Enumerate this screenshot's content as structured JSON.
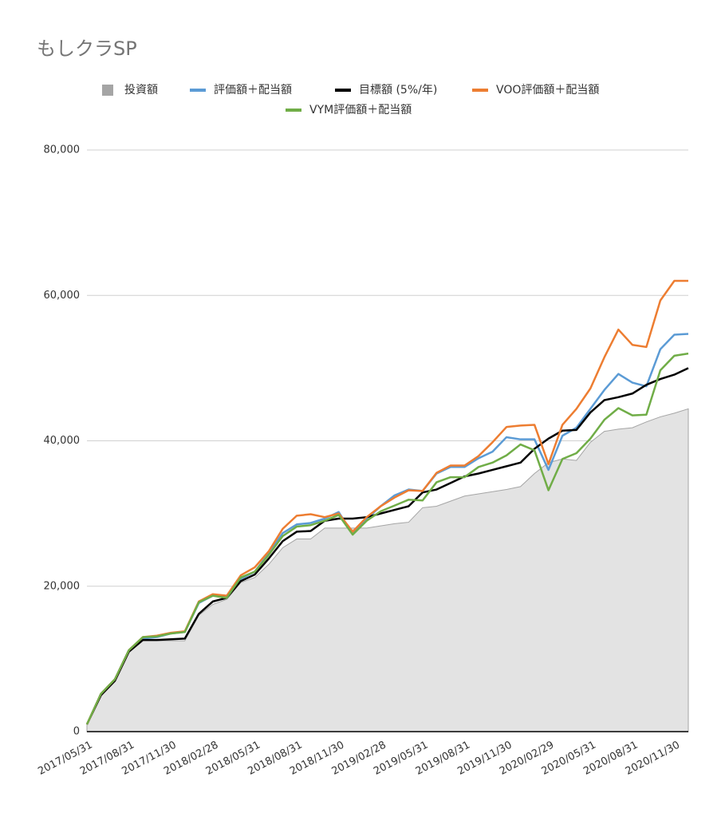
{
  "chart_data": {
    "type": "line",
    "title": "もしクラSP",
    "categories": [
      "2017/05/31",
      null,
      null,
      "2017/08/31",
      null,
      null,
      "2017/11/30",
      null,
      null,
      "2018/02/28",
      null,
      null,
      "2018/05/31",
      null,
      null,
      "2018/08/31",
      null,
      null,
      "2018/11/30",
      null,
      null,
      "2019/02/28",
      null,
      null,
      "2019/05/31",
      null,
      null,
      "2019/08/31",
      null,
      null,
      "2019/11/30",
      null,
      null,
      "2020/02/29",
      null,
      null,
      "2020/05/31",
      null,
      null,
      "2020/08/31",
      null,
      null,
      "2020/11/30",
      null
    ],
    "ylim": [
      0,
      80000
    ],
    "yticks": [
      0,
      {
        "value": 20000,
        "label": "20,000"
      },
      {
        "value": 40000,
        "label": "40,000"
      },
      {
        "value": 60000,
        "label": "60,000"
      },
      {
        "value": 80000,
        "label": "80,000"
      }
    ],
    "grid": true,
    "legend": "top",
    "series": [
      {
        "name": "投資額",
        "color": "#a5a5a5",
        "style": "area",
        "values": [
          1000,
          5000,
          7000,
          11000,
          12500,
          12500,
          12500,
          12500,
          16000,
          17500,
          18200,
          20500,
          21200,
          23000,
          25300,
          26500,
          26500,
          28000,
          28000,
          28000,
          28000,
          28300,
          28600,
          28800,
          30800,
          31000,
          31700,
          32400,
          32700,
          33000,
          33300,
          33700,
          35500,
          37000,
          37500,
          37300,
          39800,
          41300,
          41600,
          41800,
          42600,
          43300,
          43800,
          44400
        ]
      },
      {
        "name": "評価額＋配当額",
        "color": "#5b9bd5",
        "values": [
          1000,
          5200,
          7200,
          11200,
          12800,
          13000,
          13500,
          13700,
          17700,
          18700,
          18500,
          21000,
          22000,
          24500,
          27300,
          28500,
          28700,
          29300,
          30200,
          27200,
          29300,
          31000,
          32500,
          33300,
          33100,
          35500,
          36400,
          36400,
          37600,
          38500,
          40500,
          40200,
          40200,
          36000,
          40700,
          41800,
          44400,
          47000,
          49200,
          48000,
          47500,
          52600,
          54600,
          54700
        ]
      },
      {
        "name": "目標額 (5%/年)",
        "color": "#000000",
        "values": [
          1000,
          5000,
          7000,
          11000,
          12600,
          12600,
          12700,
          12800,
          16200,
          17900,
          18400,
          20700,
          21600,
          23800,
          26200,
          27500,
          27600,
          29000,
          29300,
          29300,
          29500,
          30000,
          30500,
          31000,
          32900,
          33300,
          34200,
          35100,
          35500,
          36000,
          36500,
          37000,
          38900,
          40300,
          41400,
          41500,
          43900,
          45600,
          46000,
          46500,
          47700,
          48500,
          49100,
          50000
        ]
      },
      {
        "name": "VOO評価額＋配当額",
        "color": "#ed7d31",
        "values": [
          1000,
          5200,
          7200,
          11200,
          13000,
          13200,
          13600,
          13800,
          17900,
          18900,
          18700,
          21500,
          22600,
          24800,
          27900,
          29700,
          29900,
          29500,
          30000,
          27500,
          29500,
          31000,
          32200,
          33200,
          33100,
          35600,
          36600,
          36600,
          37900,
          39800,
          41900,
          42100,
          42200,
          36800,
          42200,
          44400,
          47200,
          51500,
          55300,
          53200,
          52900,
          59300,
          62000,
          62000
        ]
      },
      {
        "name": "VYM評価額＋配当額",
        "color": "#70ad47",
        "values": [
          1000,
          5200,
          7200,
          11200,
          13000,
          13100,
          13500,
          13700,
          17800,
          18700,
          18400,
          21200,
          22000,
          24300,
          26900,
          28200,
          28400,
          29000,
          29800,
          27100,
          29000,
          30300,
          31100,
          31900,
          31800,
          34300,
          35000,
          35000,
          36400,
          37000,
          38000,
          39500,
          38700,
          33200,
          37500,
          38300,
          40300,
          42900,
          44500,
          43500,
          43600,
          49700,
          51700,
          52000
        ]
      }
    ]
  }
}
